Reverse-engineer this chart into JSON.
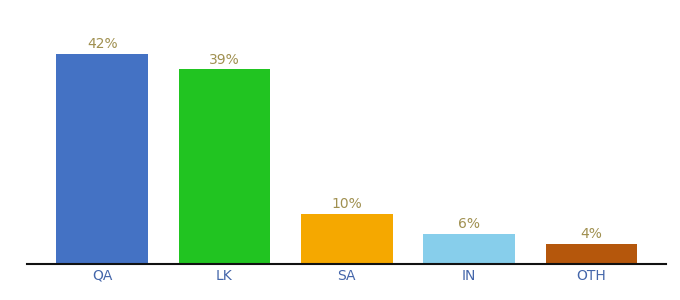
{
  "categories": [
    "QA",
    "LK",
    "SA",
    "IN",
    "OTH"
  ],
  "values": [
    42,
    39,
    10,
    6,
    4
  ],
  "bar_colors": [
    "#4472c4",
    "#21c421",
    "#f5a800",
    "#87ceeb",
    "#b5570c"
  ],
  "labels": [
    "42%",
    "39%",
    "10%",
    "6%",
    "4%"
  ],
  "label_color": "#a09050",
  "ylim": [
    0,
    48
  ],
  "background_color": "#ffffff",
  "label_fontsize": 10,
  "tick_fontsize": 10,
  "bar_width": 0.75
}
